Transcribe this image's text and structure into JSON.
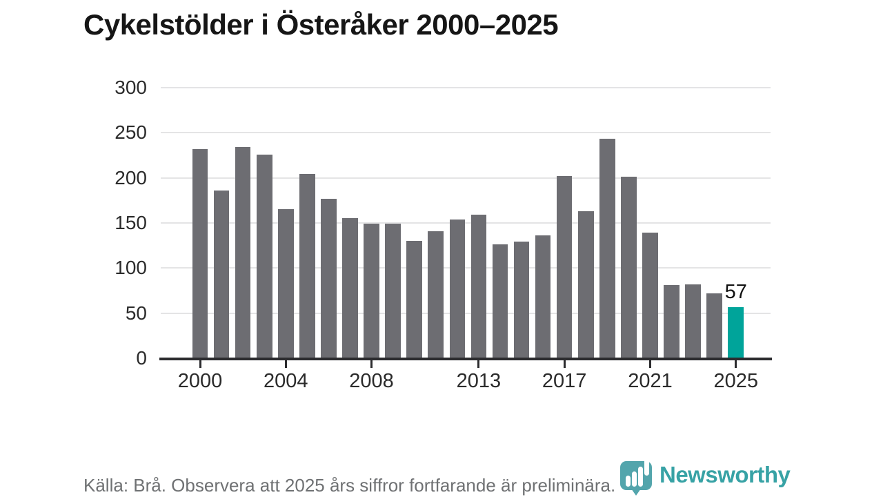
{
  "title": "Cykelstölder i Österåker 2000–2025",
  "footer": {
    "source_note": "Källa: Brå. Observera att 2025 års siffror fortfarande är preliminära.",
    "brand": "Newsworthy"
  },
  "colors": {
    "bar": "#6d6d72",
    "highlight_bar": "#00a49a",
    "grid": "#e4e4e5",
    "axis": "#2c2c2f",
    "tick_text": "#2b2b2b",
    "footer_text": "#6f7173",
    "logo_mark": "#4aa1a8",
    "logo_wordmark": "#2d9ea1"
  },
  "chart_data": {
    "type": "bar",
    "x": [
      2000,
      2001,
      2002,
      2003,
      2004,
      2005,
      2006,
      2007,
      2008,
      2009,
      2010,
      2011,
      2012,
      2013,
      2014,
      2015,
      2016,
      2017,
      2018,
      2019,
      2020,
      2021,
      2022,
      2023,
      2024,
      2025
    ],
    "values": [
      232,
      186,
      234,
      226,
      165,
      204,
      177,
      155,
      149,
      149,
      130,
      141,
      154,
      159,
      126,
      129,
      136,
      202,
      163,
      243,
      201,
      139,
      81,
      82,
      72,
      57
    ],
    "title": "Cykelstölder i Österåker 2000–2025",
    "xlabel": "",
    "ylabel": "",
    "ylim": [
      0,
      300
    ],
    "y_ticks": [
      0,
      50,
      100,
      150,
      200,
      250,
      300
    ],
    "x_tick_labels": [
      "2000",
      "2004",
      "2008",
      "2013",
      "2017",
      "2021",
      "2025"
    ],
    "grid": "horizontal",
    "legend": "none",
    "highlight_year": 2025,
    "highlight_value_label": "57"
  }
}
